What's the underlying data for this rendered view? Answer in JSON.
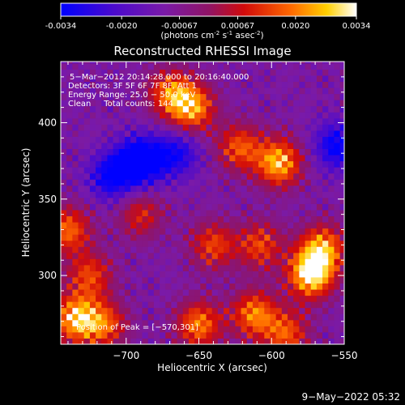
{
  "colorbar": {
    "ticks": [
      "-0.0034",
      "-0.0020",
      "-0.00067",
      "0.00067",
      "0.0020",
      "0.0034"
    ],
    "tick_values": [
      -0.0034,
      -0.002,
      -0.00067,
      0.00067,
      0.002,
      0.0034
    ],
    "range": [
      -0.0034,
      0.0034
    ],
    "units_parts": [
      "(photons cm",
      "-2",
      " s",
      "-1",
      " asec",
      "-2",
      ")"
    ]
  },
  "chart_data": {
    "type": "heatmap",
    "title": "Reconstructed RHESSI Image",
    "xlabel": "Heliocentric X (arcsec)",
    "ylabel": "Heliocentric Y (arcsec)",
    "xlim": [
      -745,
      -550
    ],
    "ylim": [
      255,
      440
    ],
    "xticks": [
      -700,
      -650,
      -600,
      -550
    ],
    "yticks": [
      300,
      350,
      400
    ],
    "xtick_labels": [
      "−700",
      "−650",
      "−600",
      "−550"
    ],
    "ytick_labels": [
      "300",
      "350",
      "400"
    ],
    "colormap": "rhessi-blue-purple-red-yellow-white",
    "bright_sources": [
      {
        "x": -573,
        "y": 301,
        "intensity": 1.0
      },
      {
        "x": -565,
        "y": 318,
        "intensity": 0.75
      },
      {
        "x": -655,
        "y": 410,
        "intensity": 0.8
      },
      {
        "x": -670,
        "y": 420,
        "intensity": 0.6
      },
      {
        "x": -595,
        "y": 374,
        "intensity": 0.85
      },
      {
        "x": -622,
        "y": 384,
        "intensity": 0.6
      },
      {
        "x": -735,
        "y": 272,
        "intensity": 0.85
      },
      {
        "x": -715,
        "y": 268,
        "intensity": 0.6
      },
      {
        "x": -740,
        "y": 330,
        "intensity": 0.65
      },
      {
        "x": -725,
        "y": 300,
        "intensity": 0.55
      },
      {
        "x": -650,
        "y": 268,
        "intensity": 0.7
      },
      {
        "x": -612,
        "y": 275,
        "intensity": 0.7
      },
      {
        "x": -590,
        "y": 262,
        "intensity": 0.6
      },
      {
        "x": -640,
        "y": 320,
        "intensity": 0.55
      },
      {
        "x": -608,
        "y": 320,
        "intensity": 0.55
      },
      {
        "x": -690,
        "y": 340,
        "intensity": 0.45
      }
    ],
    "dim_regions": [
      {
        "x": -690,
        "y": 375,
        "intensity": -0.9
      },
      {
        "x": -710,
        "y": 365,
        "intensity": -0.6
      },
      {
        "x": -665,
        "y": 380,
        "intensity": -0.5
      },
      {
        "x": -555,
        "y": 385,
        "intensity": -0.6
      }
    ],
    "info_lines": [
      "5−Mar−2012 20:14:28.000 to 20:16:40.000",
      "Detectors: 3F 5F 6F 7F 8F, Att 1",
      "Energy Range: 25.0 − 50.0 keV",
      "Clean     Total counts: 144"
    ],
    "peak_label": "Position of Peak = [−570,301]",
    "peak": [
      -570,
      301
    ]
  },
  "footer": {
    "date": "9−May−2022 05:32"
  }
}
